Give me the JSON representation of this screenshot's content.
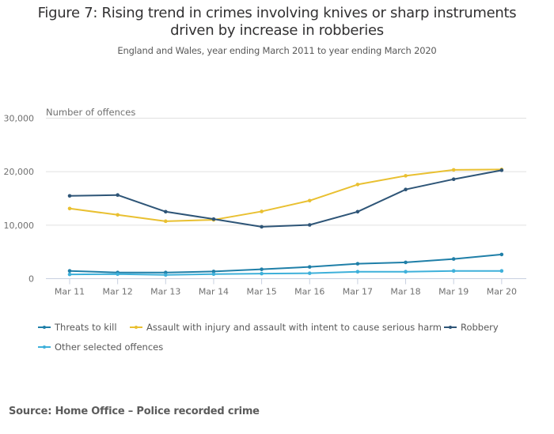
{
  "header": {
    "title_line1": "Figure 7: Rising trend in crimes involving knives or sharp instruments",
    "title_line2": "driven by increase in robberies",
    "subtitle": "England and Wales, year ending March 2011 to year ending March 2020"
  },
  "source": "Source: Home Office – Police recorded crime",
  "chart_data": {
    "type": "line",
    "title": "Figure 7: Rising trend in crimes involving knives or sharp instruments driven by increase in robberies",
    "subtitle": "England and Wales, year ending March 2011 to year ending March 2020",
    "xlabel": "",
    "ylabel": "Number of offences",
    "categories": [
      "Mar 11",
      "Mar 12",
      "Mar 13",
      "Mar 14",
      "Mar 15",
      "Mar 16",
      "Mar 17",
      "Mar 18",
      "Mar 19",
      "Mar 20"
    ],
    "ylim": [
      0,
      30000
    ],
    "yticks": [
      0,
      10000,
      20000,
      30000
    ],
    "ytick_labels": [
      "0",
      "10,000",
      "20,000",
      "30,000"
    ],
    "grid": true,
    "legend_position": "bottom",
    "series": [
      {
        "name": "Threats to kill",
        "color": "#1f7fa8",
        "values": [
          1450,
          1150,
          1150,
          1350,
          1750,
          2200,
          2790,
          3040,
          3680,
          4520
        ]
      },
      {
        "name": "Assault with injury and assault with intent to cause serious harm",
        "color": "#e9c031",
        "values": [
          13110,
          11930,
          10740,
          11000,
          12570,
          14590,
          17600,
          19230,
          20340,
          20420
        ]
      },
      {
        "name": "Robbery",
        "color": "#2e5577",
        "values": [
          15480,
          15630,
          12520,
          11140,
          9700,
          10050,
          12520,
          16670,
          18590,
          20270
        ]
      },
      {
        "name": "Other selected offences",
        "color": "#3eb0da",
        "values": [
          800,
          850,
          700,
          850,
          950,
          1010,
          1300,
          1300,
          1450,
          1450
        ]
      }
    ]
  }
}
